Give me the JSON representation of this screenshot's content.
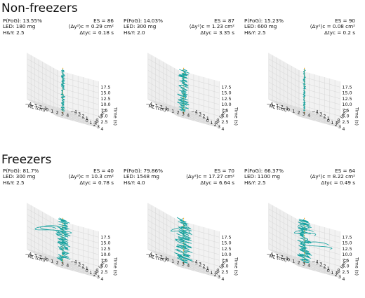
{
  "groups": [
    {
      "title": "Non-freezers"
    },
    {
      "title": "Freezers"
    }
  ],
  "colors": {
    "trajectory": "#17a2a0",
    "center_line": "#f0a820",
    "pane": "#eeeeee",
    "grid": "#d6d6d6"
  },
  "chart_data": [
    {
      "type": "line3d",
      "group": "Non-freezers",
      "pfog": "P(FoG): 13.55%",
      "led": "LED: 180 mg",
      "hy": "H&Y: 2.5",
      "es": "ES = 86",
      "var": "⟨Δy²⟩c = 0.29 cm²",
      "dt": "Δtyc = 0.18 s",
      "xlabel": "ML (cm)",
      "ylabel": "AP (cm)",
      "zlabel": "Time (s)",
      "xticks": [
        "−4",
        "−3",
        "−2",
        "−1",
        "0",
        "1",
        "2",
        "3",
        "4"
      ],
      "yticks": [
        "4",
        "3",
        "2",
        "1",
        "0",
        "−1",
        "−2",
        "−3",
        "−4"
      ],
      "zticks": [
        "2.5",
        "5.0",
        "7.5",
        "10.0",
        "12.5",
        "15.0",
        "17.5"
      ],
      "xlim": [
        -4,
        4
      ],
      "ylim": [
        -4,
        4
      ],
      "zlim": [
        0,
        20
      ],
      "spread": 0.35,
      "loops": []
    },
    {
      "type": "line3d",
      "group": "Non-freezers",
      "pfog": "P(FoG): 14.03%",
      "led": "LED: 300 mg",
      "hy": "H&Y: 2.0",
      "es": "ES = 87",
      "var": "⟨Δy²⟩c = 1.23 cm²",
      "dt": "Δtyc = 3.35 s",
      "xlabel": "ML (cm)",
      "ylabel": "AP (cm)",
      "zlabel": "Time (s)",
      "xticks": [
        "−4",
        "−3",
        "−2",
        "−1",
        "0",
        "1",
        "2",
        "3",
        "4"
      ],
      "yticks": [
        "4",
        "3",
        "2",
        "1",
        "0",
        "−1",
        "−2",
        "−3",
        "−4"
      ],
      "zticks": [
        "2.5",
        "5.0",
        "7.5",
        "10.0",
        "12.5",
        "15.0",
        "17.5"
      ],
      "xlim": [
        -4,
        4
      ],
      "ylim": [
        -4,
        4
      ],
      "zlim": [
        0,
        20
      ],
      "spread": 1.0,
      "loops": []
    },
    {
      "type": "line3d",
      "group": "Non-freezers",
      "pfog": "P(FoG): 15.23%",
      "led": "LED: 600 mg",
      "hy": "H&Y: 2.5",
      "es": "ES = 90",
      "var": "⟨Δy²⟩c = 0.08 cm²",
      "dt": "Δtyc = 0.2 s",
      "xlabel": "ML (cm)",
      "ylabel": "AP (cm)",
      "zlabel": "Time (s)",
      "xticks": [
        "−4",
        "−3",
        "−2",
        "−1",
        "0",
        "1",
        "2",
        "3",
        "4"
      ],
      "yticks": [
        "4",
        "3",
        "2",
        "1",
        "0",
        "−1",
        "−2",
        "−3",
        "−4"
      ],
      "zticks": [
        "2.5",
        "5.0",
        "7.5",
        "10.0",
        "12.5",
        "15.0",
        "17.5"
      ],
      "xlim": [
        -4,
        4
      ],
      "ylim": [
        -4,
        4
      ],
      "zlim": [
        0,
        20
      ],
      "spread": 0.2,
      "loops": []
    },
    {
      "type": "line3d",
      "group": "Freezers",
      "pfog": "P(FoG): 81.7%",
      "led": "LED: 300 mg",
      "hy": "H&Y: 2.5",
      "es": "ES = 40",
      "var": "⟨Δy²⟩c = 10.3 cm²",
      "dt": "Δtyc = 0.78 s",
      "xlabel": "ML (cm)",
      "ylabel": "AP (cm)",
      "zlabel": "Time (s)",
      "xticks": [
        "−4",
        "−3",
        "−2",
        "−1",
        "0",
        "1",
        "2",
        "3",
        "4"
      ],
      "yticks": [
        "4",
        "3",
        "2",
        "1",
        "0",
        "−1",
        "−2",
        "−3",
        "−4"
      ],
      "zticks": [
        "2.5",
        "5.0",
        "7.5",
        "10.0",
        "12.5",
        "15.0",
        "17.5"
      ],
      "xlim": [
        -4,
        4
      ],
      "ylim": [
        -4,
        4
      ],
      "zlim": [
        0,
        20
      ],
      "spread": 1.2,
      "loops": [
        [
          -3.2,
          2.5,
          15,
          2.6
        ],
        [
          -2.0,
          -1.5,
          12,
          2.0
        ]
      ]
    },
    {
      "type": "line3d",
      "group": "Freezers",
      "pfog": "P(FoG): 79.86%",
      "led": "LED: 1548 mg",
      "hy": "H&Y: 4.0",
      "es": "ES = 70",
      "var": "⟨Δy²⟩c = 17.27 cm²",
      "dt": "Δtyc = 6.64 s",
      "xlabel": "ML (cm)",
      "ylabel": "AP (cm)",
      "zlabel": "Time (s)",
      "xticks": [
        "−4",
        "−3",
        "−2",
        "−1",
        "0",
        "1",
        "2",
        "3",
        "4"
      ],
      "yticks": [
        "4",
        "3",
        "2",
        "1",
        "0",
        "−1",
        "−2",
        "−3",
        "−4"
      ],
      "zticks": [
        "2.5",
        "5.0",
        "7.5",
        "10.0",
        "12.5",
        "15.0",
        "17.5"
      ],
      "xlim": [
        -4,
        4
      ],
      "ylim": [
        -4,
        4
      ],
      "zlim": [
        0,
        20
      ],
      "spread": 1.5,
      "loops": [
        [
          -1.0,
          0.5,
          14,
          1.6
        ]
      ]
    },
    {
      "type": "line3d",
      "group": "Freezers",
      "pfog": "P(FoG): 66.37%",
      "led": "LED: 1100 mg",
      "hy": "H&Y: 2.5",
      "es": "ES = 64",
      "var": "⟨Δy²⟩c = 8.22 cm²",
      "dt": "Δtyc = 0.49 s",
      "xlabel": "ML (cm)",
      "ylabel": "AP (cm)",
      "zlabel": "Time (s)",
      "xticks": [
        "−4",
        "−3",
        "−2",
        "−1",
        "0",
        "1",
        "2",
        "3",
        "4"
      ],
      "yticks": [
        "4",
        "3",
        "2",
        "1",
        "0",
        "−1",
        "−2",
        "−3",
        "−4"
      ],
      "zticks": [
        "2.5",
        "5.0",
        "7.5",
        "10.0",
        "12.5",
        "15.0",
        "17.5"
      ],
      "xlim": [
        -4,
        4
      ],
      "ylim": [
        -4,
        4
      ],
      "zlim": [
        0,
        20
      ],
      "spread": 1.3,
      "loops": [
        [
          1.5,
          1.5,
          10,
          2.4
        ],
        [
          0.5,
          -0.5,
          13,
          1.8
        ]
      ]
    }
  ]
}
